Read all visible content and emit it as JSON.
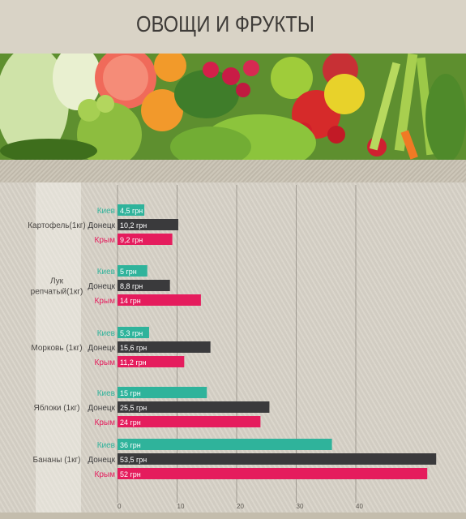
{
  "title": "ОВОЩИ И ФРУКТЫ",
  "colors": {
    "kiev": "#2fb39b",
    "donetsk": "#3a3a3c",
    "crimea": "#e51c5d"
  },
  "chart_data": {
    "type": "bar",
    "orientation": "horizontal",
    "categories": [
      "Картофель(1кг)",
      "Лук репчатый(1кг)",
      "Морковь (1кг)",
      "Яблоки (1кг)",
      "Бананы (1кг)"
    ],
    "category_lines": [
      [
        "Картофель(1кг)"
      ],
      [
        "Лук",
        "репчатый(1кг)"
      ],
      [
        "Морковь (1кг)"
      ],
      [
        "Яблоки (1кг)"
      ],
      [
        "Бананы (1кг)"
      ]
    ],
    "series": [
      {
        "name": "Киев",
        "color_key": "kiev",
        "values": [
          4.5,
          5,
          5.3,
          15,
          36
        ],
        "labels": [
          "4,5 грн",
          "5 грн",
          "5,3 грн",
          "15 грн",
          "36 грн"
        ]
      },
      {
        "name": "Донецк",
        "color_key": "donetsk",
        "values": [
          10.2,
          8.8,
          15.6,
          25.5,
          53.5
        ],
        "labels": [
          "10,2 грн",
          "8,8 грн",
          "15,6 грн",
          "25,5 грн",
          "53,5 грн"
        ]
      },
      {
        "name": "Крым",
        "color_key": "crimea",
        "values": [
          9.2,
          14,
          11.2,
          24,
          52
        ],
        "labels": [
          "9,2 грн",
          "14 грн",
          "11,2 грн",
          "24 грн",
          "52 грн"
        ]
      }
    ],
    "xticks": [
      0,
      10,
      20,
      30,
      40
    ],
    "xlim": [
      0,
      55
    ],
    "grid": true
  }
}
